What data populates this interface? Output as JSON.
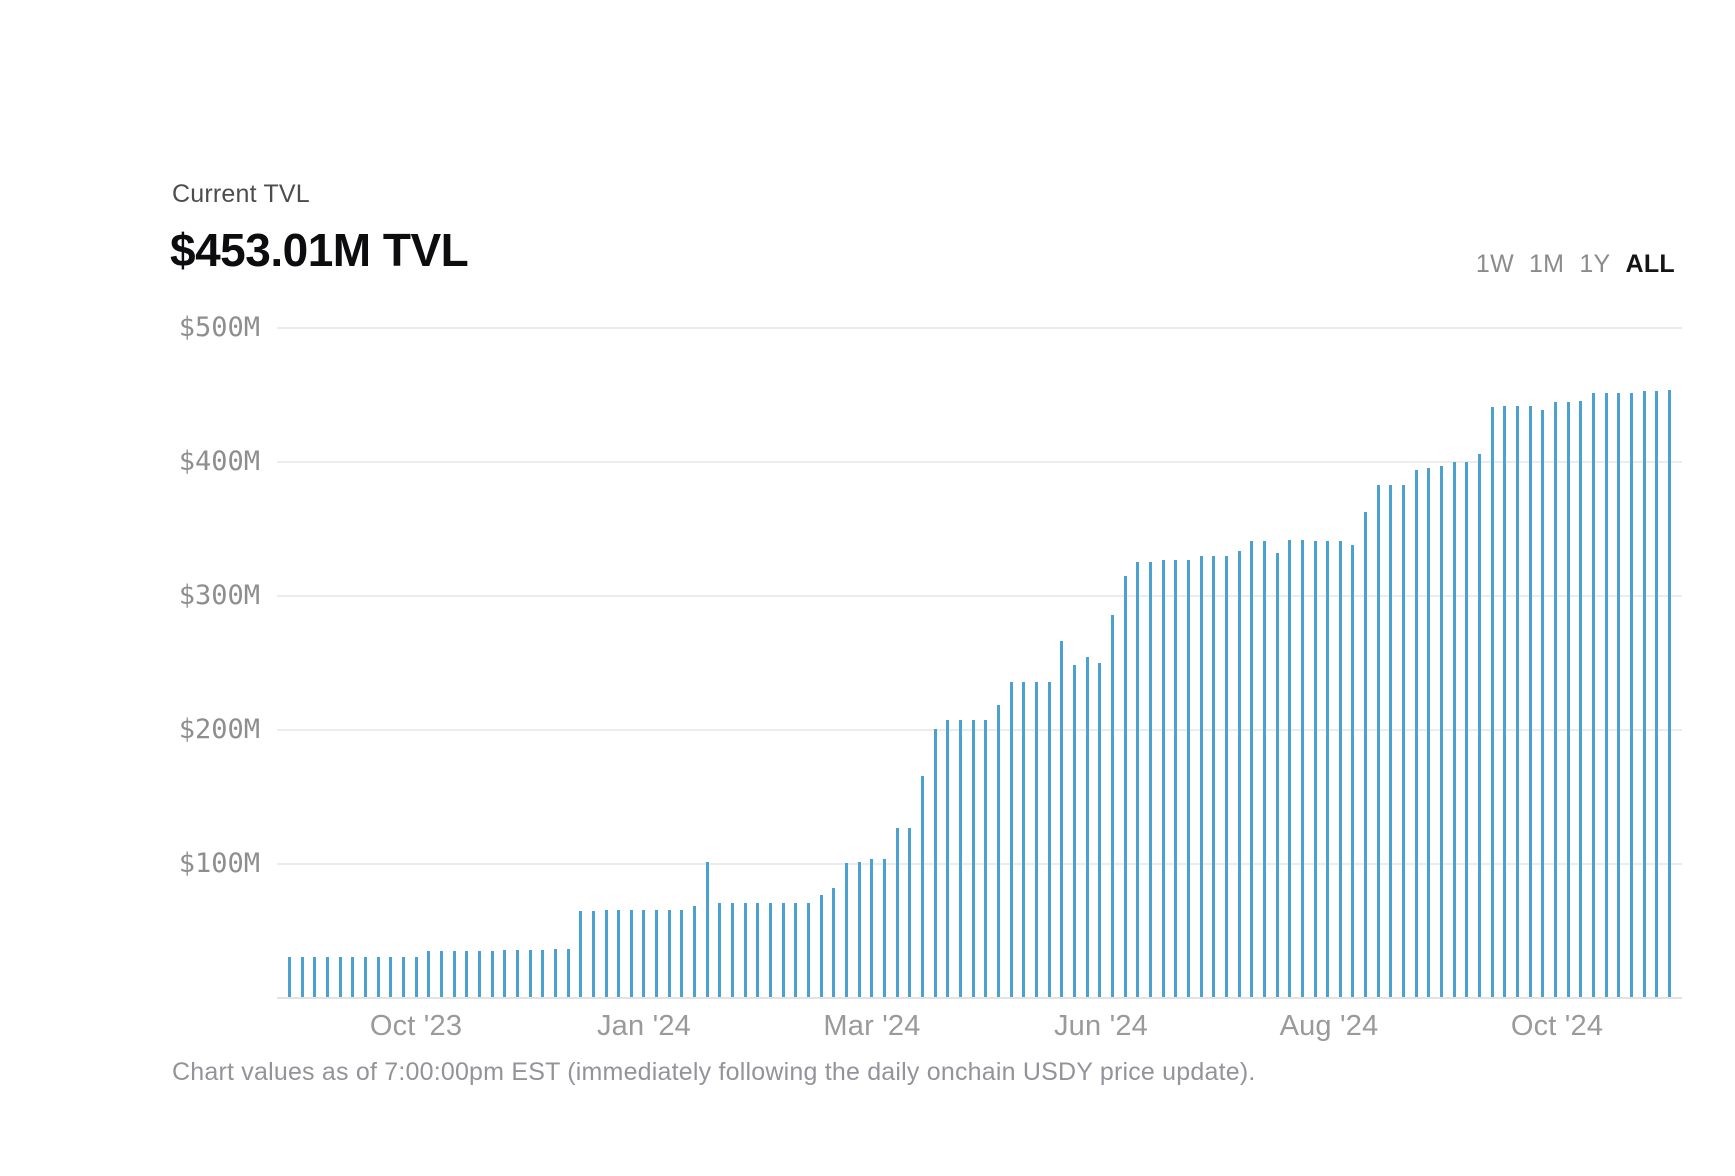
{
  "header": {
    "kicker": "Current TVL",
    "title": "$453.01M TVL"
  },
  "range_selector": {
    "options": [
      {
        "label": "1W",
        "selected": false
      },
      {
        "label": "1M",
        "selected": false
      },
      {
        "label": "1Y",
        "selected": false
      },
      {
        "label": "ALL",
        "selected": true
      }
    ]
  },
  "footer": {
    "note": "Chart values as of 7:00:00pm EST (immediately following the daily onchain USDY price update)."
  },
  "colors": {
    "bar_blue": "#4ba1cf",
    "gridline": "#ececec",
    "baseline": "#e2e2e2",
    "title_text": "#0d0d0f",
    "muted_text": "#8e8e8e"
  },
  "chart_data": {
    "type": "bar",
    "title": "$453.01M TVL",
    "subtitle": "Current TVL",
    "unit": "USD millions (TVL)",
    "ylim": [
      0,
      500
    ],
    "grid": true,
    "bar_color": "#4ba1cf",
    "ytick_labels_top_down": [
      "$500M",
      "$400M",
      "$300M",
      "$200M",
      "$100M"
    ],
    "ytick_values_top_down": [
      500,
      400,
      300,
      200,
      100
    ],
    "xtick_labels": [
      "Oct '23",
      "Jan '24",
      "Mar '24",
      "Jun '24",
      "Aug '24",
      "Oct '24"
    ],
    "values": [
      30,
      30,
      30,
      30,
      30,
      30,
      30,
      30,
      30,
      30,
      30,
      34,
      34,
      34,
      34,
      34,
      34,
      35,
      35,
      35,
      35,
      36,
      36,
      64,
      64,
      65,
      65,
      65,
      65,
      65,
      65,
      65,
      68,
      101,
      70,
      70,
      70,
      70,
      70,
      70,
      70,
      70,
      76,
      81,
      100,
      101,
      103,
      103,
      126,
      126,
      165,
      200,
      207,
      207,
      207,
      207,
      218,
      235,
      235,
      235,
      235,
      266,
      248,
      254,
      249,
      285,
      314,
      325,
      325,
      326,
      326,
      326,
      329,
      329,
      329,
      333,
      340,
      340,
      331,
      341,
      341,
      340,
      340,
      340,
      337,
      362,
      382,
      382,
      382,
      393,
      395,
      396,
      399,
      399,
      405,
      440,
      441,
      441,
      441,
      438,
      444,
      444,
      445,
      451,
      451,
      451,
      451,
      452,
      452,
      453
    ]
  }
}
